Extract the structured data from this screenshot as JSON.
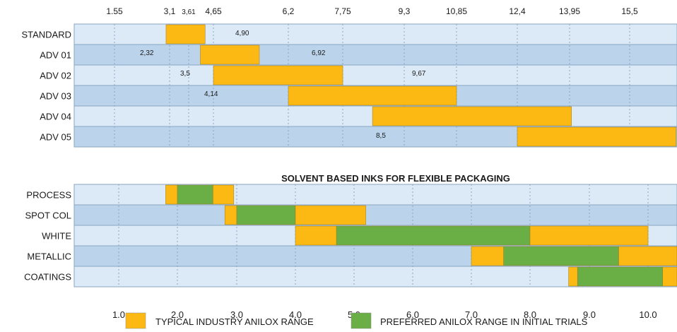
{
  "colors": {
    "typical": "#FDB913",
    "preferred": "#6AAF45",
    "row_light": "#DCE9F6",
    "row_dark": "#BBD4EC",
    "grid": "#8AA6C1",
    "border": "#8AA6C1"
  },
  "chart_data": [
    {
      "type": "bar",
      "orientation": "horizontal",
      "title": "",
      "x_ticks": [
        "1.55",
        "3,1",
        "3,61",
        "4,65",
        "6,2",
        "7,75",
        "9,3",
        "10,85",
        "12,4",
        "13,95",
        "15,5"
      ],
      "xlim": [
        0.3,
        16.7
      ],
      "grid": true,
      "rows": [
        {
          "label": "STANDARD",
          "shade": "light",
          "bars": [
            {
              "start": 3.0,
              "end": 4.3,
              "series": "typical"
            }
          ],
          "annotations": [
            "4,90"
          ]
        },
        {
          "label": "ADV 01",
          "shade": "dark",
          "bars": [
            {
              "start": 4.1,
              "end": 5.6,
              "series": "typical"
            }
          ],
          "annotations": [
            "2,32",
            "6,92"
          ]
        },
        {
          "label": "ADV 02",
          "shade": "light",
          "bars": [
            {
              "start": 4.65,
              "end": 7.75,
              "series": "typical"
            }
          ],
          "annotations": [
            "3,5",
            "9,67"
          ]
        },
        {
          "label": "ADV 03",
          "shade": "dark",
          "bars": [
            {
              "start": 6.2,
              "end": 10.85,
              "series": "typical"
            }
          ],
          "annotations": [
            "4,14"
          ]
        },
        {
          "label": "ADV 04",
          "shade": "light",
          "bars": [
            {
              "start": 8.5,
              "end": 14.0,
              "series": "typical"
            }
          ],
          "annotations": []
        },
        {
          "label": "ADV 05",
          "shade": "dark",
          "bars": [
            {
              "start": 12.4,
              "end": 16.7,
              "series": "typical"
            }
          ],
          "annotations": [
            "8,5"
          ]
        }
      ]
    },
    {
      "type": "bar",
      "orientation": "horizontal",
      "title": "SOLVENT BASED INKS FOR FLEXIBLE PACKAGING",
      "x_ticks": [
        "1.0",
        "2.0",
        "3.0",
        "4.0",
        "5.0",
        "6.0",
        "7.0",
        "8.0",
        "9.0",
        "10.0"
      ],
      "xlim": [
        0.3,
        10.6
      ],
      "grid": true,
      "rows": [
        {
          "label": "PROCESS",
          "shade": "light",
          "bars": [
            {
              "start": 1.8,
              "end": 2.0,
              "series": "typical"
            },
            {
              "start": 2.0,
              "end": 2.6,
              "series": "preferred"
            },
            {
              "start": 2.6,
              "end": 2.95,
              "series": "typical"
            }
          ]
        },
        {
          "label": "SPOT COL",
          "shade": "dark",
          "bars": [
            {
              "start": 2.8,
              "end": 3.0,
              "series": "typical"
            },
            {
              "start": 3.0,
              "end": 4.0,
              "series": "preferred"
            },
            {
              "start": 4.0,
              "end": 5.2,
              "series": "typical"
            }
          ]
        },
        {
          "label": "WHITE",
          "shade": "light",
          "bars": [
            {
              "start": 4.0,
              "end": 4.7,
              "series": "typical"
            },
            {
              "start": 4.7,
              "end": 8.0,
              "series": "preferred"
            },
            {
              "start": 8.0,
              "end": 10.0,
              "series": "typical"
            }
          ]
        },
        {
          "label": "METALLIC",
          "shade": "dark",
          "bars": [
            {
              "start": 7.0,
              "end": 7.55,
              "series": "typical"
            },
            {
              "start": 7.55,
              "end": 9.5,
              "series": "preferred"
            },
            {
              "start": 9.5,
              "end": 10.6,
              "series": "typical"
            }
          ]
        },
        {
          "label": "COATINGS",
          "shade": "light",
          "bars": [
            {
              "start": 8.65,
              "end": 8.8,
              "series": "typical"
            },
            {
              "start": 8.8,
              "end": 10.25,
              "series": "preferred"
            },
            {
              "start": 10.25,
              "end": 10.6,
              "series": "typical"
            }
          ]
        }
      ]
    }
  ],
  "legend": {
    "placement": "bottom",
    "items": [
      {
        "key": "typical",
        "label": "TYPICAL INDUSTRY ANILOX RANGE"
      },
      {
        "key": "preferred",
        "label": "PREFERRED ANILOX RANGE IN INITIAL TRIALS"
      }
    ]
  }
}
